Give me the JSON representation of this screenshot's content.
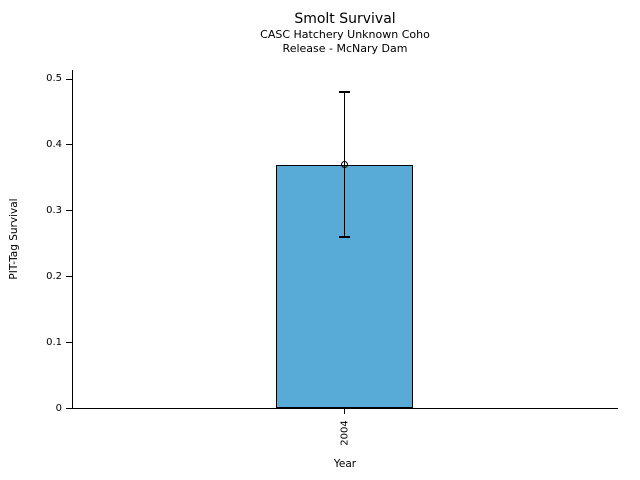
{
  "chart_data": {
    "type": "bar",
    "title": "Smolt Survival",
    "subtitle_line1": "CASC Hatchery Unknown Coho",
    "subtitle_line2": "Release - McNary Dam",
    "xlabel": "Year",
    "ylabel": "PIT-Tag Survival",
    "categories": [
      "2004"
    ],
    "values": [
      0.37
    ],
    "error_low": [
      0.26
    ],
    "error_high": [
      0.48
    ],
    "ylim": [
      0,
      0.5
    ],
    "yticks": [
      0,
      0.1,
      0.2,
      0.3,
      0.4,
      0.5
    ],
    "ytick_labels": [
      "0",
      "0.1",
      "0.2",
      "0.3",
      "0.4",
      "0.5"
    ],
    "bar_color": "#58ABD6",
    "edge_color": "#000000",
    "marker": "open-circle",
    "grid": false,
    "legend": null
  }
}
